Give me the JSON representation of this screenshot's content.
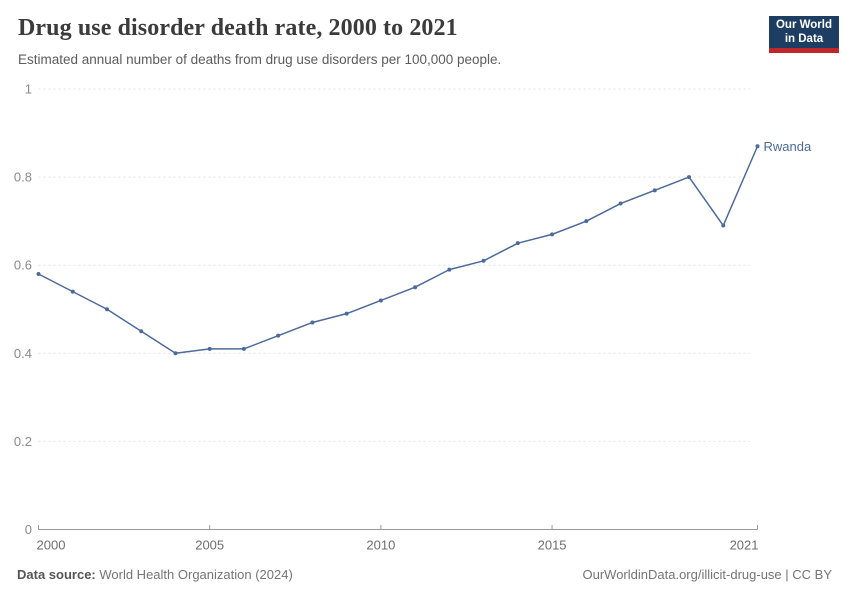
{
  "header": {
    "title": "Drug use disorder death rate, 2000 to 2021",
    "subtitle": "Estimated annual number of deaths from drug use disorders per 100,000 people.",
    "logo": {
      "line1": "Our World",
      "line2": "in Data",
      "bg_color": "#1d3d63",
      "bar_color": "#c0272d"
    }
  },
  "chart_data": {
    "type": "line",
    "title": "Drug use disorder death rate, 2000 to 2021",
    "xlabel": "",
    "ylabel": "",
    "x": [
      2000,
      2001,
      2002,
      2003,
      2004,
      2005,
      2006,
      2007,
      2008,
      2009,
      2010,
      2011,
      2012,
      2013,
      2014,
      2015,
      2016,
      2017,
      2018,
      2019,
      2020,
      2021
    ],
    "series": [
      {
        "name": "Rwanda",
        "color": "#4C6A9C",
        "values": [
          0.58,
          0.54,
          0.5,
          0.45,
          0.4,
          0.41,
          0.41,
          0.44,
          0.47,
          0.49,
          0.52,
          0.55,
          0.59,
          0.61,
          0.65,
          0.67,
          0.7,
          0.74,
          0.77,
          0.8,
          0.69,
          0.87
        ]
      }
    ],
    "xlim": [
      2000,
      2021
    ],
    "ylim": [
      0,
      1
    ],
    "yticks": [
      0,
      0.2,
      0.4,
      0.6,
      0.8,
      1
    ],
    "ytick_labels": [
      "0",
      "0.2",
      "0.4",
      "0.6",
      "0.8",
      "1"
    ],
    "xticks": [
      2000,
      2005,
      2010,
      2015,
      2021
    ],
    "grid": "horizontal-dashed",
    "legend_position": "end-of-line-label",
    "colors": {
      "grid": "#e2e2e2",
      "axis": "#999999",
      "y_tick_label": "#8b8b8b",
      "x_tick_label": "#6e6e6e"
    }
  },
  "footer": {
    "source_label": "Data source:",
    "source_value": " World Health Organization (2024)",
    "rights": "OurWorldinData.org/illicit-drug-use | CC BY"
  }
}
